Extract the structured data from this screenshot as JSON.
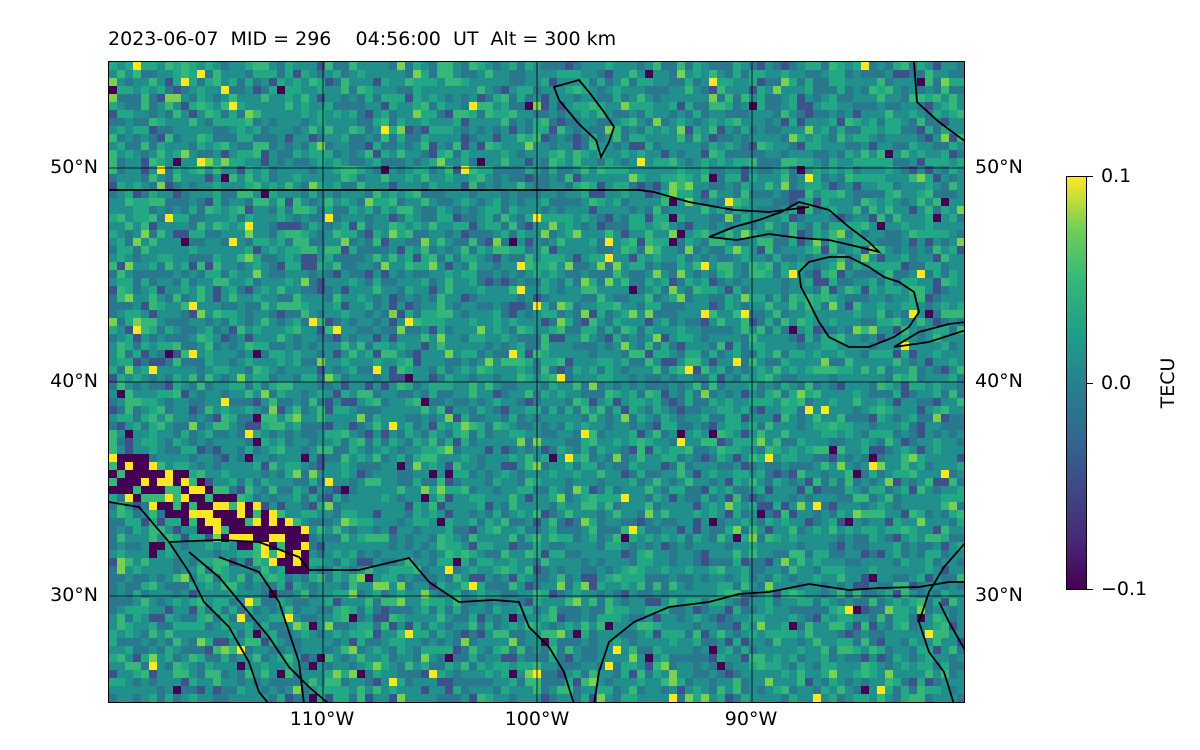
{
  "title": "2023-06-07  MID = 296    04:56:00  UT  Alt = 300 km",
  "lat_labels": [
    "50°N",
    "40°N",
    "30°N"
  ],
  "lon_labels": [
    "110°W",
    "100°W",
    "90°W"
  ],
  "colorbar": {
    "label": "TECU",
    "ticks": [
      "0.1",
      "0.0",
      "−0.1"
    ],
    "range": [
      -0.1,
      0.1
    ],
    "colormap": "viridis"
  },
  "map": {
    "type": "heatmap",
    "variable": "TEC perturbation",
    "lon_range": [
      -120,
      -80
    ],
    "lat_range": [
      25,
      55
    ],
    "gridlines": true,
    "background_colors": [
      "#21908d",
      "#2a788e",
      "#22a884",
      "#35b779",
      "#3b528b",
      "#440154",
      "#fde725",
      "#7ad151"
    ]
  }
}
